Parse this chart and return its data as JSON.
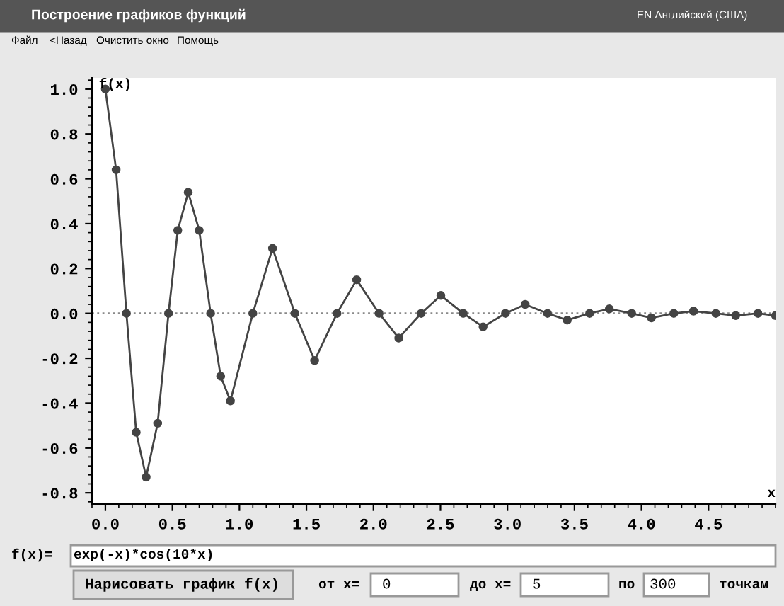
{
  "chart_data": {
    "type": "line",
    "ylabel": "f(x)",
    "xlabel": "x",
    "x": [
      0,
      0.08,
      0.157,
      0.23,
      0.304,
      0.39,
      0.471,
      0.54,
      0.618,
      0.7,
      0.785,
      0.86,
      0.933,
      1.1,
      1.247,
      1.414,
      1.561,
      1.728,
      1.875,
      2.042,
      2.189,
      2.356,
      2.503,
      2.67,
      2.818,
      2.985,
      3.132,
      3.299,
      3.446,
      3.613,
      3.76,
      3.927,
      4.074,
      4.241,
      4.388,
      4.555,
      4.703,
      4.869,
      5.0
    ],
    "series": [
      {
        "color": "#444444",
        "values": [
          1.0,
          0.64,
          0,
          -0.53,
          -0.73,
          -0.49,
          0,
          0.37,
          0.54,
          0.37,
          0,
          -0.28,
          -0.39,
          0,
          0.29,
          0,
          -0.21,
          0,
          0.15,
          0,
          -0.11,
          0,
          0.08,
          0,
          -0.06,
          0,
          0.04,
          0,
          -0.03,
          0,
          0.02,
          0,
          -0.02,
          0,
          0.01,
          0,
          -0.01,
          0,
          -0.01
        ]
      }
    ],
    "marker": "circle",
    "line_style": "solid",
    "grid": false,
    "xlim": [
      -0.1,
      5.0
    ],
    "ylim": [
      -0.85,
      1.05
    ],
    "xticks": [
      {
        "value": 0,
        "label": "0.0"
      },
      0.5,
      {
        "value": 1,
        "label": "1.0"
      },
      1.5,
      {
        "value": 2,
        "label": "2.0"
      },
      2.5,
      {
        "value": 3,
        "label": "3.0"
      },
      3.5,
      {
        "value": 4,
        "label": "4.0"
      },
      4.5
    ],
    "yticks": [
      -0.8,
      -0.6,
      -0.4,
      -0.2,
      {
        "value": 0,
        "label": "0.0"
      },
      0.2,
      0.4,
      0.6,
      0.8,
      {
        "value": 1,
        "label": "1.0"
      }
    ],
    "ref_lines": [
      {
        "axis": "y",
        "value": 0,
        "line_style": "dotted",
        "color": "#888888"
      }
    ],
    "annotations": [
      "Построение графиков функций",
      "Файл",
      "<Назад",
      "Очистить окно",
      "Помощь",
      "EN Английский (США)",
      "f(x)=",
      "exp(-x)*cos(10*x)",
      "Нарисовать график f(x)",
      "от x=",
      "0",
      "до x=",
      "5",
      "по",
      "300",
      "точкам"
    ]
  }
}
